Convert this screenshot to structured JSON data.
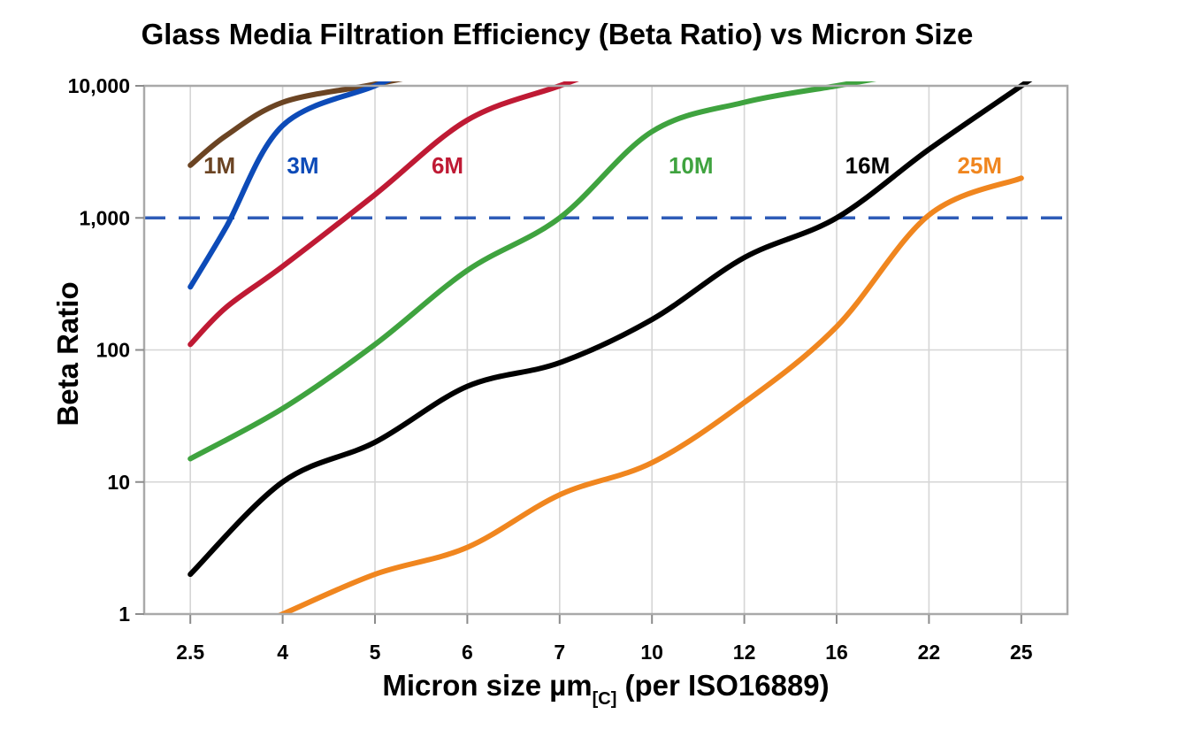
{
  "page": {
    "background": "#FFFFFF"
  },
  "chart_data": {
    "type": "line",
    "title": "Glass Media Filtration Efficiency (Beta Ratio) vs Micron Size",
    "ylabel": "Beta Ratio",
    "xlabel": {
      "main": "Micron size µm",
      "subscript": "[C]",
      "suffix": " (per ISO16889)"
    },
    "x_axis": {
      "scale": "categorical-log",
      "tick_values": [
        2.5,
        4,
        5,
        6,
        7,
        10,
        12,
        16,
        22,
        25
      ],
      "tick_labels": [
        "2.5",
        "4",
        "5",
        "6",
        "7",
        "10",
        "12",
        "16",
        "22",
        "25"
      ]
    },
    "y_axis": {
      "scale": "log",
      "min": 1,
      "max": 10000,
      "tick_values": [
        1,
        10,
        100,
        1000,
        10000
      ],
      "tick_labels": [
        "1",
        "10",
        "100",
        "1,000",
        "10,000"
      ],
      "gridline_values": [
        10,
        100
      ]
    },
    "reference_line": {
      "beta": 1000,
      "style": "dashed",
      "color": "#2E5CB8"
    },
    "legend_position": "inline-labels",
    "series": [
      {
        "name": "1M",
        "color": "#6B4423",
        "label": {
          "x": 2.9,
          "beta": 2500
        },
        "points": [
          [
            2.5,
            2500
          ],
          [
            3,
            4200
          ],
          [
            4,
            7500
          ],
          [
            4.9,
            10000
          ]
        ]
      },
      {
        "name": "3M",
        "color": "#0D4BB8",
        "label": {
          "x": 4.2,
          "beta": 2500
        },
        "points": [
          [
            2.5,
            300
          ],
          [
            3,
            850
          ],
          [
            4,
            5000
          ],
          [
            5,
            10000
          ]
        ]
      },
      {
        "name": "6M",
        "color": "#BF1A34",
        "label": {
          "x": 5.77,
          "beta": 2500
        },
        "points": [
          [
            2.5,
            110
          ],
          [
            3,
            210
          ],
          [
            4,
            430
          ],
          [
            5,
            1500
          ],
          [
            6,
            5500
          ],
          [
            7,
            10000
          ]
        ]
      },
      {
        "name": "10M",
        "color": "#3FA33F",
        "label": {
          "x": 10.8,
          "beta": 2500
        },
        "points": [
          [
            2.5,
            15
          ],
          [
            4,
            36
          ],
          [
            5,
            110
          ],
          [
            6,
            400
          ],
          [
            7,
            1000
          ],
          [
            10,
            4500
          ],
          [
            12,
            7500
          ],
          [
            16,
            10000
          ]
        ]
      },
      {
        "name": "16M",
        "color": "#000000",
        "label": {
          "x": 17.8,
          "beta": 2500
        },
        "points": [
          [
            2.5,
            2
          ],
          [
            4,
            10
          ],
          [
            5,
            20
          ],
          [
            6,
            53
          ],
          [
            7,
            80
          ],
          [
            10,
            170
          ],
          [
            12,
            500
          ],
          [
            16,
            1000
          ],
          [
            22,
            3300
          ],
          [
            25,
            10000
          ]
        ]
      },
      {
        "name": "25M",
        "color": "#F0861F",
        "label": {
          "x": 23.6,
          "beta": 2500
        },
        "points": [
          [
            4,
            1
          ],
          [
            5,
            2
          ],
          [
            6,
            3.2
          ],
          [
            7,
            8
          ],
          [
            10,
            14
          ],
          [
            12,
            40
          ],
          [
            16,
            150
          ],
          [
            22,
            1050
          ],
          [
            25,
            2000
          ]
        ]
      }
    ],
    "styles": {
      "grid_color": "#D6D6D6",
      "border_color": "#A9A9A9",
      "tick_color": "#8C8C8C",
      "text_color": "#000000",
      "dash_pattern": "24 15"
    }
  }
}
